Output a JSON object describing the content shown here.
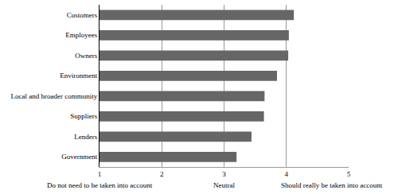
{
  "chart_data": {
    "type": "bar",
    "orientation": "horizontal",
    "categories": [
      "Customers",
      "Employees",
      "Owners",
      "Environment",
      "Local and broader community",
      "Suppliers",
      "Lenders",
      "Government"
    ],
    "values": [
      4.12,
      4.04,
      4.03,
      3.85,
      3.65,
      3.64,
      3.44,
      3.2
    ],
    "color": "#666666",
    "xlim": [
      1,
      5
    ],
    "xticks": [
      1,
      2,
      3,
      4,
      5
    ],
    "grid": true,
    "annotations": [
      {
        "text": "Do not need to be taken into account",
        "x": 1
      },
      {
        "text": "Neutral",
        "x": 3
      },
      {
        "text": "Should really be taken into account",
        "x": 5
      }
    ]
  }
}
